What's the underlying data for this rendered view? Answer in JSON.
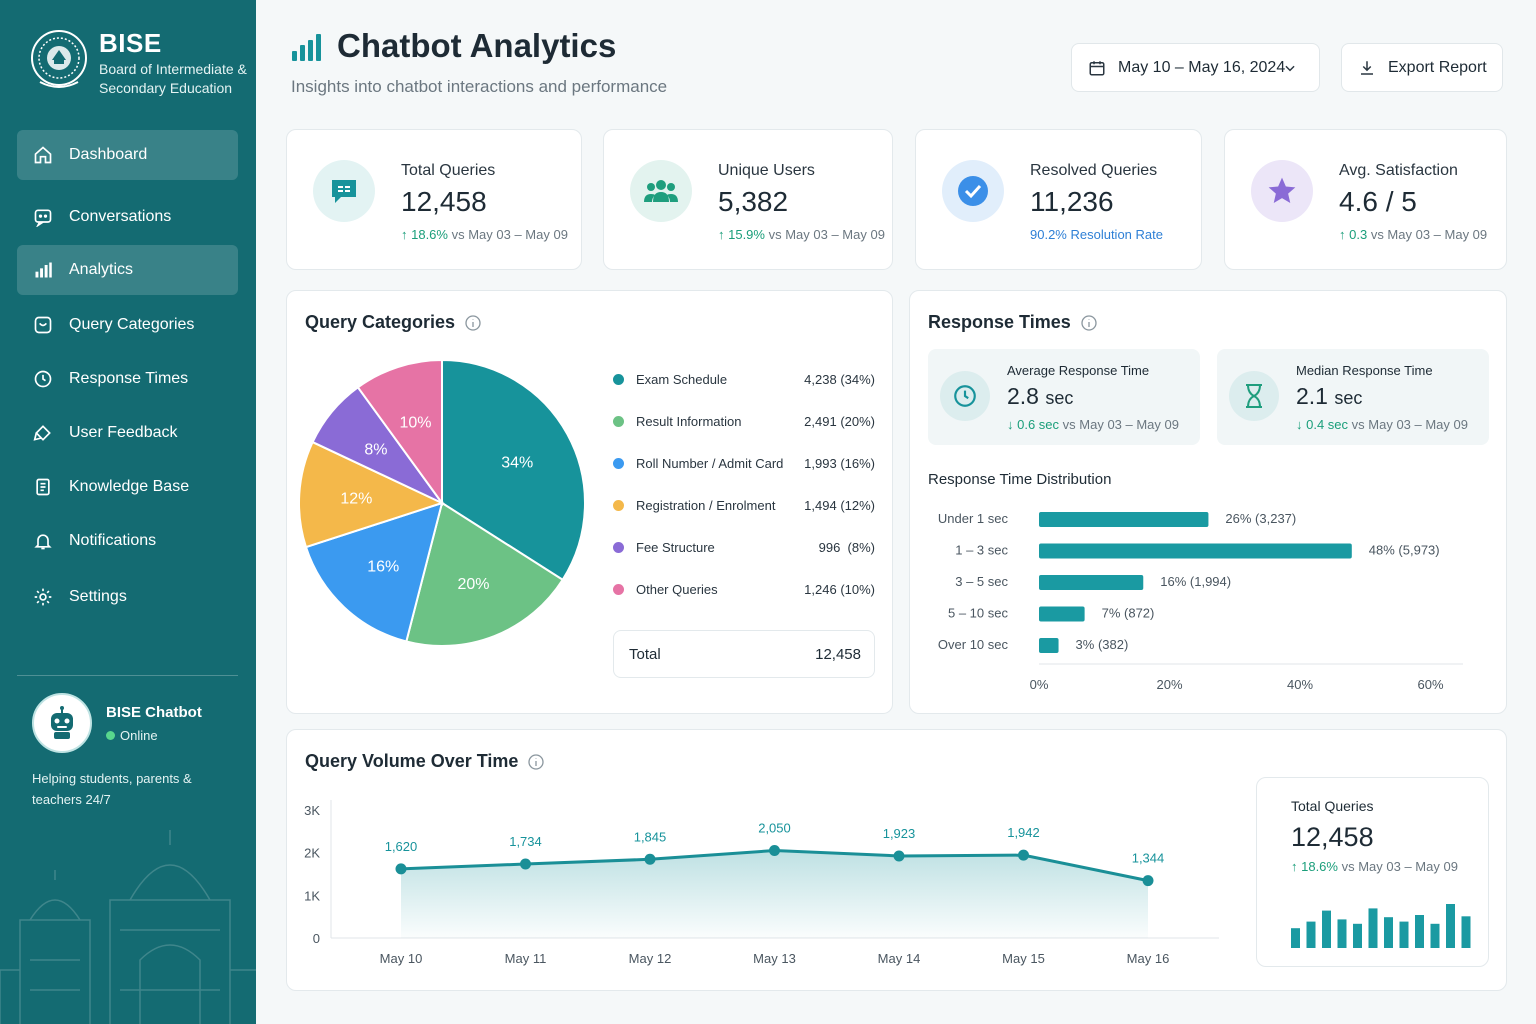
{
  "sidebar": {
    "brand_title": "BISE",
    "brand_subtitle": "Board of Intermediate & Secondary Education",
    "items": [
      {
        "label": "Dashboard",
        "icon": "home-icon"
      },
      {
        "label": "Conversations",
        "icon": "chat-icon"
      },
      {
        "label": "Analytics",
        "icon": "bar-chart-icon"
      },
      {
        "label": "Query Categories",
        "icon": "tag-icon"
      },
      {
        "label": "Response Times",
        "icon": "clock-icon"
      },
      {
        "label": "User Feedback",
        "icon": "feedback-icon"
      },
      {
        "label": "Knowledge Base",
        "icon": "book-icon"
      },
      {
        "label": "Notifications",
        "icon": "bell-icon"
      },
      {
        "label": "Settings",
        "icon": "gear-icon"
      }
    ],
    "bot": {
      "name": "BISE Chatbot",
      "status": "Online",
      "description": "Helping students, parents & teachers 24/7"
    }
  },
  "header": {
    "title": "Chatbot Analytics",
    "subtitle": "Insights into chatbot interactions and performance",
    "date_range": "May 10 – May 16, 2024",
    "export_label": "Export Report"
  },
  "kpis": [
    {
      "label": "Total Queries",
      "value": "12,458",
      "delta": "↑ 18.6%",
      "compare": "vs May 03 – May 09",
      "icon": "chat-bubble-icon"
    },
    {
      "label": "Unique Users",
      "value": "5,382",
      "delta": "↑ 15.9%",
      "compare": "vs May 03 – May 09",
      "icon": "users-icon"
    },
    {
      "label": "Resolved Queries",
      "value": "11,236",
      "delta": "90.2% Resolution Rate",
      "compare": "",
      "icon": "check-circle-icon"
    },
    {
      "label": "Avg. Satisfaction",
      "value": "4.6 / 5",
      "delta": "↑ 0.3",
      "compare": "vs May 03 – May 09",
      "icon": "star-icon"
    }
  ],
  "query_categories": {
    "title": "Query Categories",
    "total_label": "Total",
    "total_value": "12,458"
  },
  "response_times": {
    "title": "Response Times",
    "average": {
      "label": "Average Response Time",
      "value": "2.8",
      "unit": "sec",
      "delta": "↓ 0.6 sec",
      "compare": "vs May 03 – May 09"
    },
    "median": {
      "label": "Median Response Time",
      "value": "2.1",
      "unit": "sec",
      "delta": "↓ 0.4 sec",
      "compare": "vs May 03 – May 09"
    },
    "distribution_title": "Response Time Distribution"
  },
  "query_volume": {
    "title": "Query Volume Over Time",
    "total_label": "Total Queries",
    "total_value": "12,458",
    "total_delta": "↑ 18.6%",
    "total_compare": "vs May 03 – May 09"
  },
  "colors": {
    "sidebar": "#146b72",
    "teal": "#17939b",
    "green": "#6cc285",
    "blue": "#3b9af0",
    "orange": "#f4b84a",
    "purple": "#8a6bd6",
    "pink": "#e673a5",
    "up": "#1a9e7a"
  },
  "chart_data": [
    {
      "type": "pie",
      "title": "Query Categories",
      "categories": [
        "Exam Schedule",
        "Result Information",
        "Roll Number / Admit Card",
        "Registration / Enrolment",
        "Fee Structure",
        "Other Queries"
      ],
      "values": [
        4238,
        2491,
        1993,
        1494,
        996,
        1246
      ],
      "percent_labels": [
        "34%",
        "20%",
        "16%",
        "12%",
        "8%",
        "10%"
      ],
      "value_labels": [
        "4,238 (34%)",
        "2,491 (20%)",
        "1,993 (16%)",
        "1,494 (12%)",
        "996  (8%)",
        "1,246 (10%)"
      ],
      "colors": [
        "#17939b",
        "#6cc285",
        "#3b9af0",
        "#f4b84a",
        "#8a6bd6",
        "#e673a5"
      ]
    },
    {
      "type": "bar",
      "orientation": "horizontal",
      "title": "Response Time Distribution",
      "categories": [
        "Under 1 sec",
        "1 – 3 sec",
        "3 – 5 sec",
        "5 – 10 sec",
        "Over 10 sec"
      ],
      "values": [
        26,
        48,
        16,
        7,
        3
      ],
      "value_labels": [
        "26% (3,237)",
        "48% (5,973)",
        "16% (1,994)",
        "7% (872)",
        "3% (382)"
      ],
      "xlim": [
        0,
        60
      ],
      "xticks": [
        "0%",
        "20%",
        "40%",
        "60%"
      ]
    },
    {
      "type": "area",
      "title": "Query Volume Over Time",
      "x": [
        "May 10",
        "May 11",
        "May 12",
        "May 13",
        "May 14",
        "May 15",
        "May 16"
      ],
      "values": [
        1620,
        1734,
        1845,
        2050,
        1923,
        1942,
        1344
      ],
      "value_labels": [
        "1,620",
        "1,734",
        "1,845",
        "2,050",
        "1,923",
        "1,942",
        "1,344"
      ],
      "ylim": [
        0,
        3000
      ],
      "yticks": [
        "0",
        "1K",
        "2K",
        "3K"
      ]
    },
    {
      "type": "bar",
      "title": "Total Queries sparkline",
      "values": [
        0.45,
        0.6,
        0.85,
        0.65,
        0.55,
        0.9,
        0.7,
        0.6,
        0.75,
        0.55,
        1.0,
        0.72
      ]
    }
  ]
}
